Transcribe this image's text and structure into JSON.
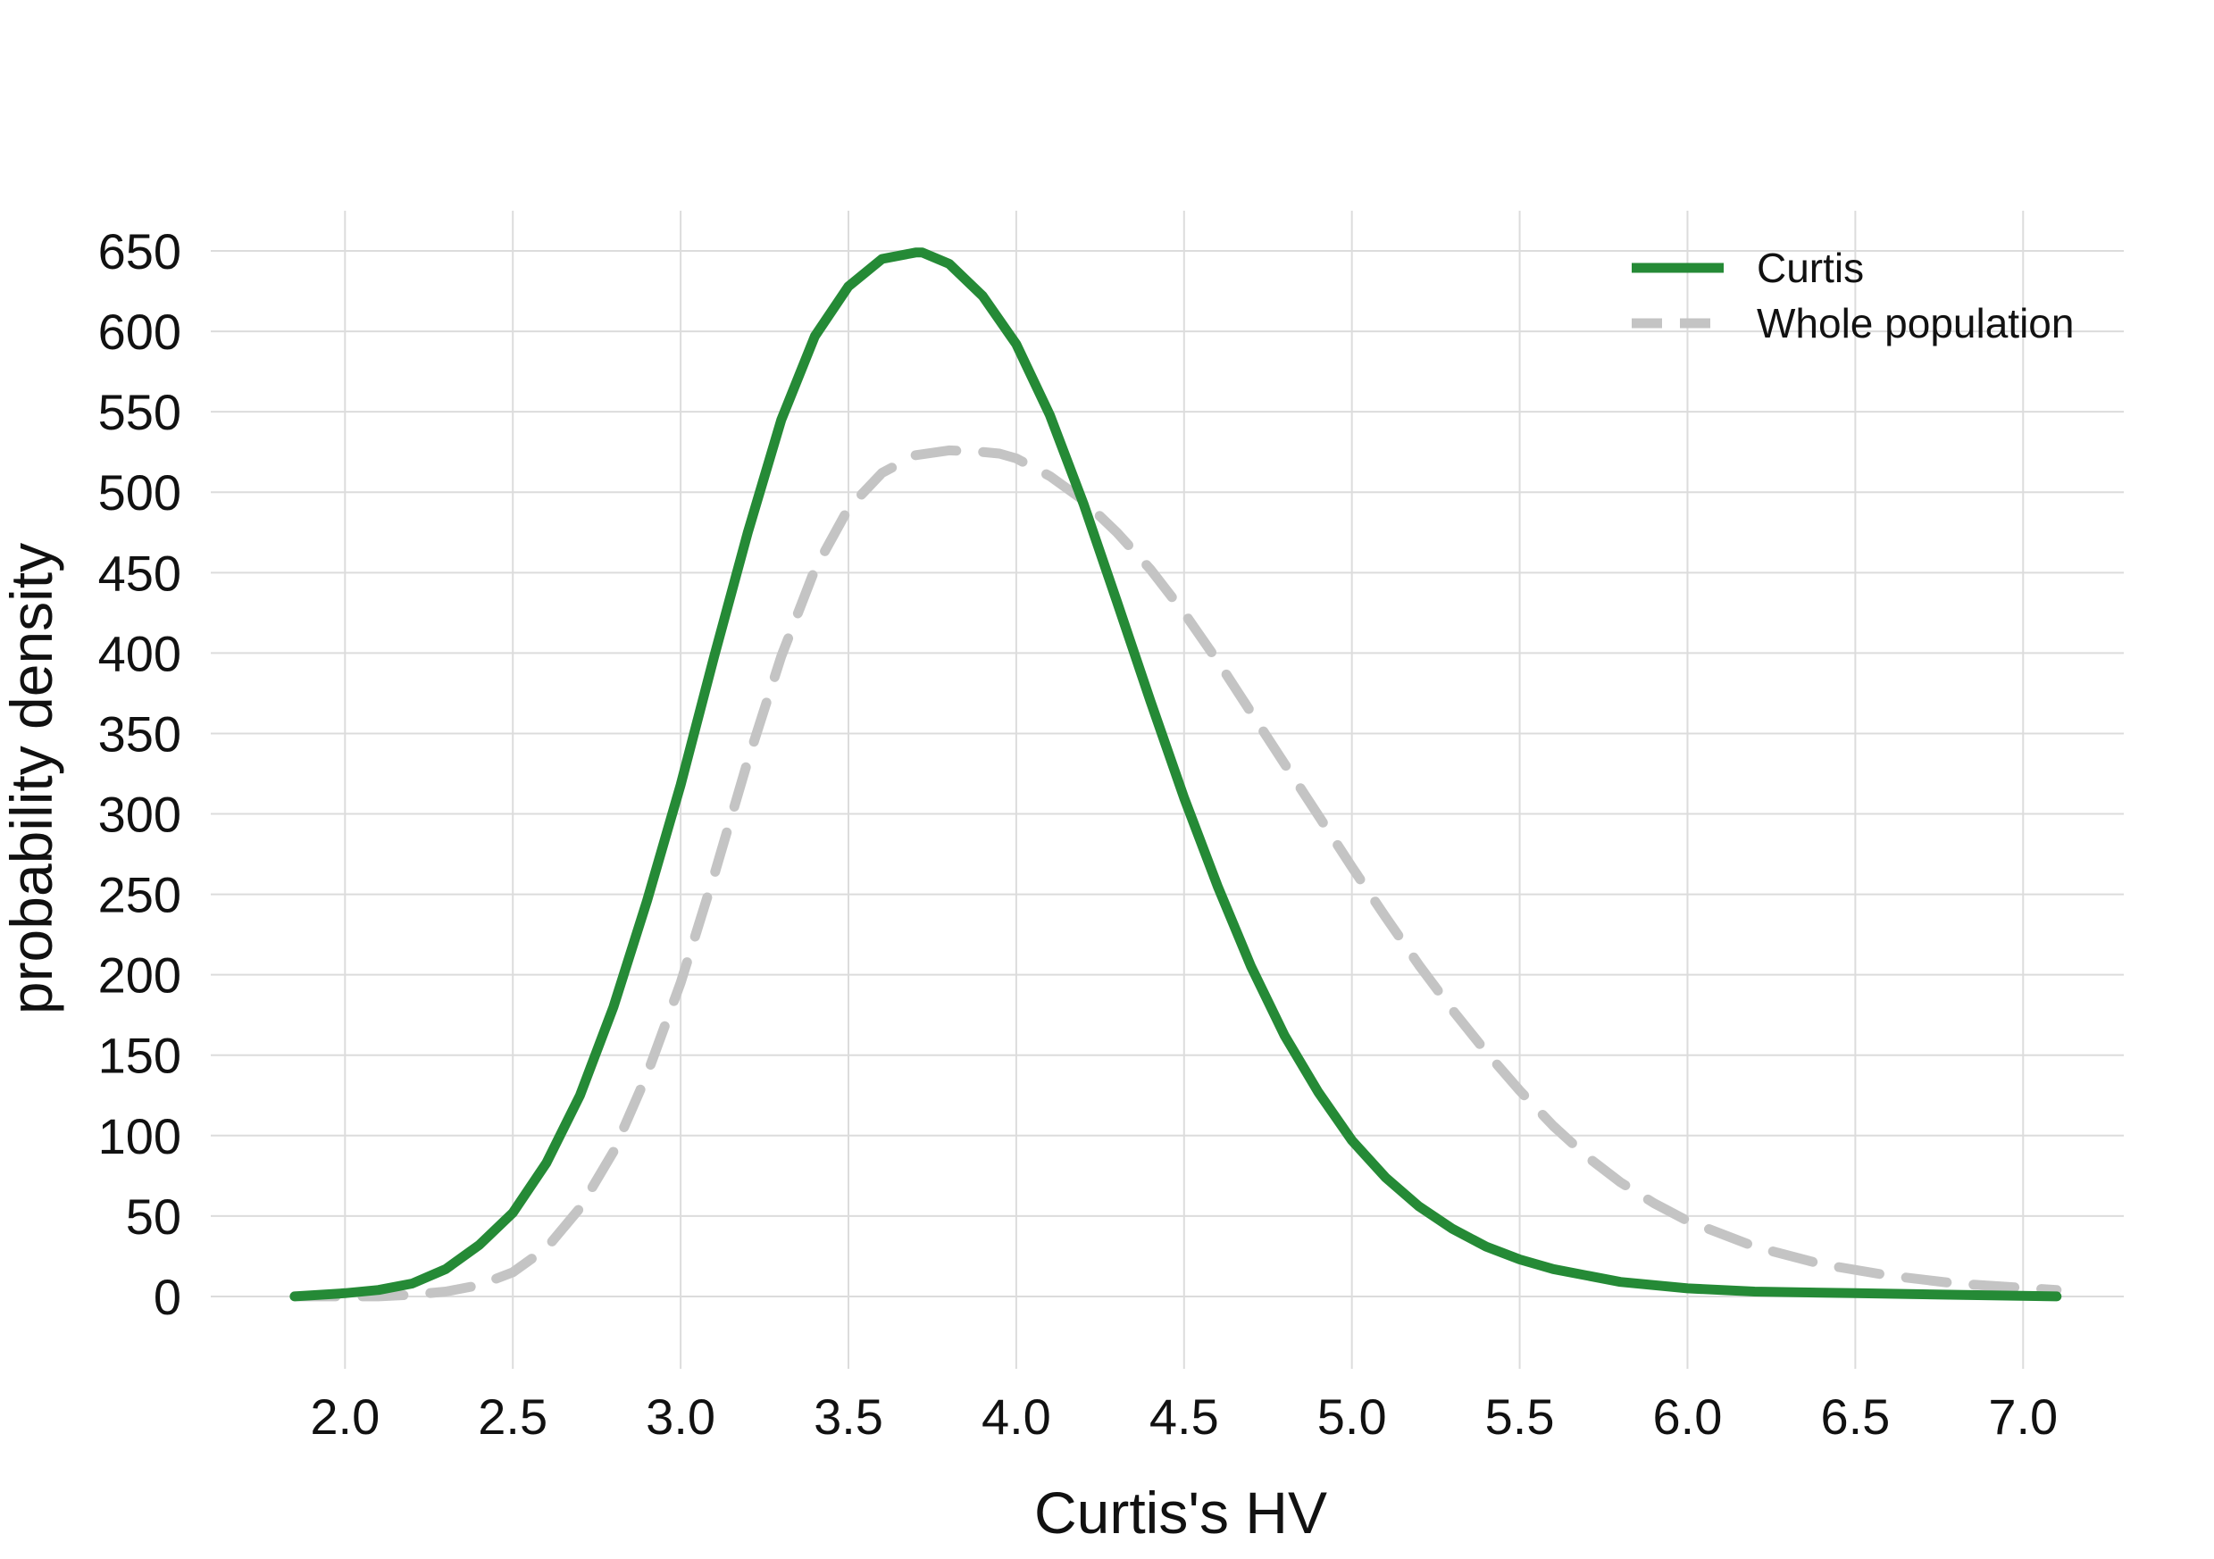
{
  "chart_data": {
    "type": "line",
    "title": "",
    "xlabel": "Curtis's HV",
    "ylabel": "probability density",
    "xlim": [
      1.6,
      7.3
    ],
    "ylim": [
      -45,
      675
    ],
    "x_ticks": [
      "2.0",
      "2.5",
      "3.0",
      "3.5",
      "4.0",
      "4.5",
      "5.0",
      "5.5",
      "6.0",
      "6.5",
      "7.0"
    ],
    "y_ticks": [
      "0",
      "50",
      "100",
      "150",
      "200",
      "250",
      "300",
      "350",
      "400",
      "450",
      "500",
      "550",
      "600",
      "650"
    ],
    "grid": true,
    "legend": {
      "placement": "top-right"
    },
    "colors": {
      "curtis": "#258a36",
      "whole": "#c4c4c4",
      "grid": "#dcdcdc"
    },
    "series": [
      {
        "name": "Curtis",
        "style": "solid",
        "x": [
          1.85,
          2.0,
          2.1,
          2.2,
          2.3,
          2.4,
          2.5,
          2.6,
          2.7,
          2.8,
          2.9,
          3.0,
          3.1,
          3.2,
          3.3,
          3.4,
          3.5,
          3.6,
          3.7,
          3.72,
          3.8,
          3.9,
          4.0,
          4.1,
          4.2,
          4.3,
          4.4,
          4.5,
          4.6,
          4.7,
          4.8,
          4.9,
          5.0,
          5.1,
          5.2,
          5.3,
          5.4,
          5.5,
          5.6,
          5.8,
          6.0,
          6.2,
          6.5,
          6.8,
          7.1
        ],
        "y": [
          0,
          2,
          4,
          8,
          17,
          32,
          52,
          83,
          125,
          180,
          246,
          318,
          398,
          475,
          545,
          597,
          628,
          645,
          649,
          649,
          642,
          622,
          592,
          548,
          493,
          432,
          370,
          310,
          255,
          205,
          162,
          127,
          97,
          74,
          56,
          42,
          31,
          23,
          17,
          9,
          5,
          3,
          2,
          1,
          0
        ]
      },
      {
        "name": "Whole population",
        "style": "dashed",
        "x": [
          1.85,
          2.0,
          2.1,
          2.2,
          2.3,
          2.4,
          2.5,
          2.6,
          2.7,
          2.8,
          2.9,
          3.0,
          3.1,
          3.2,
          3.3,
          3.4,
          3.5,
          3.6,
          3.7,
          3.8,
          3.9,
          3.95,
          4.0,
          4.1,
          4.2,
          4.3,
          4.4,
          4.5,
          4.6,
          4.7,
          4.8,
          4.9,
          5.0,
          5.1,
          5.2,
          5.3,
          5.4,
          5.5,
          5.6,
          5.7,
          5.8,
          5.9,
          6.0,
          6.2,
          6.4,
          6.6,
          6.8,
          7.1
        ],
        "y": [
          0,
          0,
          0,
          1,
          3,
          7,
          15,
          30,
          55,
          90,
          138,
          195,
          262,
          333,
          398,
          452,
          490,
          512,
          523,
          526,
          525,
          524,
          521,
          510,
          495,
          475,
          452,
          425,
          395,
          363,
          331,
          299,
          267,
          236,
          206,
          178,
          152,
          128,
          106,
          87,
          71,
          58,
          47,
          31,
          20,
          13,
          8,
          4
        ]
      }
    ]
  }
}
